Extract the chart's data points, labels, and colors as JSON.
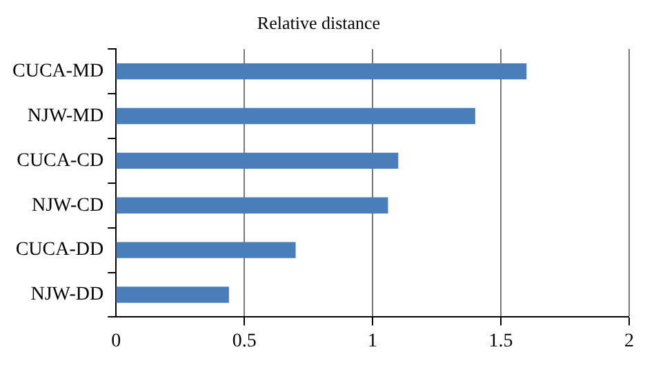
{
  "chart_data": {
    "type": "bar",
    "orientation": "horizontal",
    "title": "Relative distance",
    "categories": [
      "CUCA-MD",
      "NJW-MD",
      "CUCA-CD",
      "NJW-CD",
      "CUCA-DD",
      "NJW-DD"
    ],
    "values": [
      1.6,
      1.4,
      1.1,
      1.06,
      0.7,
      0.44
    ],
    "color": "#4a7ebb",
    "xlim": [
      0,
      2
    ],
    "xticks": [
      0,
      0.5,
      1,
      1.5,
      2
    ],
    "grid": "x"
  }
}
